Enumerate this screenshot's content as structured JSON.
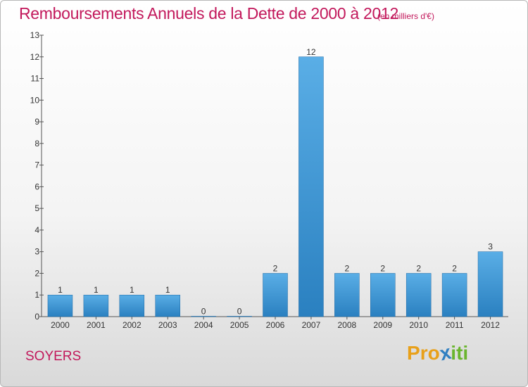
{
  "header": {
    "title": "Remboursements Annuels de la Dette de 2000 à 2012",
    "unit": "(en milliers d'€)"
  },
  "footer": {
    "commune": "SOYERS",
    "logo_letters": [
      "P",
      "r",
      "o",
      "x",
      "i",
      "t",
      "i"
    ]
  },
  "colors": {
    "accent": "#c2185b",
    "bar_light": "#5aaee6",
    "bar_dark": "#2a80c0",
    "logo": [
      "#e8a01a",
      "#e8a01a",
      "#e8a01a",
      "#2f7fc1",
      "#6ab52e",
      "#6ab52e",
      "#6ab52e"
    ]
  },
  "chart_data": {
    "type": "bar",
    "categories": [
      "2000",
      "2001",
      "2002",
      "2003",
      "2004",
      "2005",
      "2006",
      "2007",
      "2008",
      "2009",
      "2010",
      "2011",
      "2012"
    ],
    "values": [
      1,
      1,
      1,
      1,
      0,
      0,
      2,
      12,
      2,
      2,
      2,
      2,
      3
    ],
    "title": "Remboursements Annuels de la Dette de 2000 à 2012",
    "xlabel": "",
    "ylabel": "",
    "ylim": [
      0,
      13
    ],
    "yticks": [
      0,
      1,
      2,
      3,
      4,
      5,
      6,
      7,
      8,
      9,
      10,
      11,
      12,
      13
    ],
    "grid": false,
    "data_labels": true
  }
}
